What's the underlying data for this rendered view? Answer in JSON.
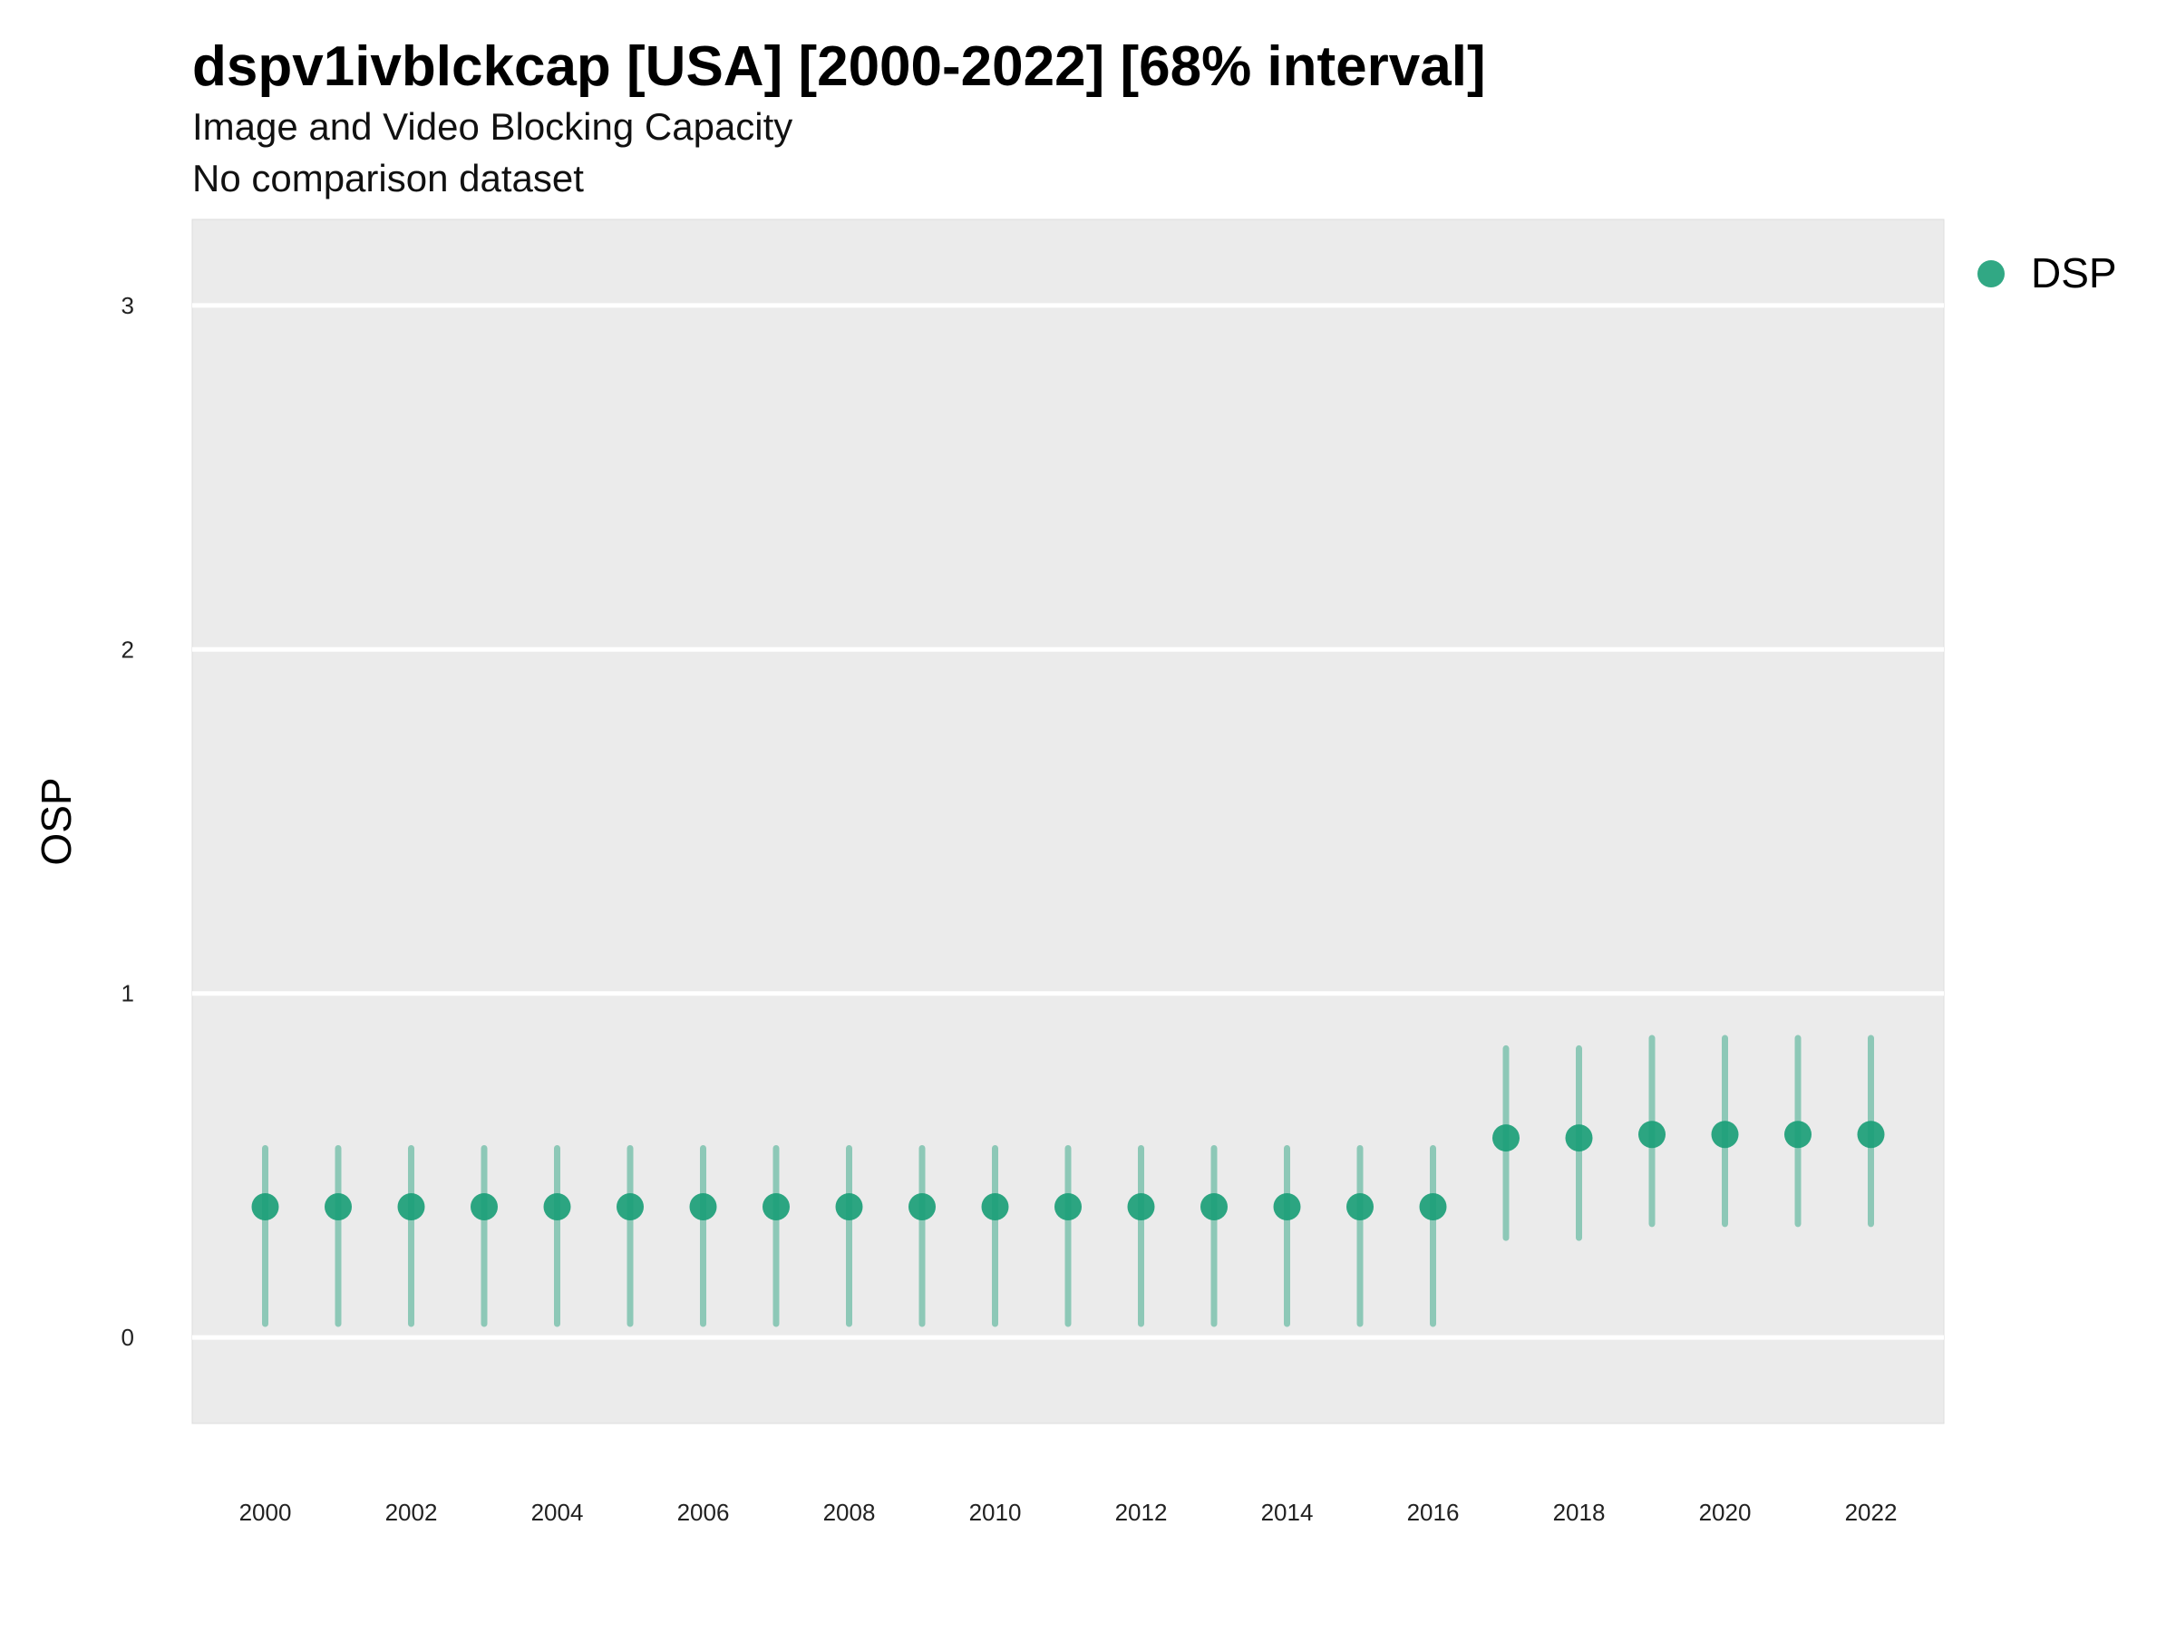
{
  "chart_data": {
    "type": "scatter",
    "title": "dspv1ivblckcap [USA] [2000-2022] [68% interval]",
    "subtitle": "Image and Video Blocking Capacity",
    "caption": "No comparison dataset",
    "xlabel": "",
    "ylabel": "OSP",
    "xlim": [
      1999,
      2023
    ],
    "ylim": [
      -0.25,
      3.25
    ],
    "yticks": [
      0,
      1,
      2,
      3
    ],
    "xticks": [
      2000,
      2002,
      2004,
      2006,
      2008,
      2010,
      2012,
      2014,
      2016,
      2018,
      2020,
      2022
    ],
    "grid": true,
    "legend_position": "right",
    "colors": {
      "series": "#1b9e77",
      "panel": "#ebebeb",
      "gridline": "#ffffff"
    },
    "series": [
      {
        "name": "DSP",
        "x": [
          2000,
          2001,
          2002,
          2003,
          2004,
          2005,
          2006,
          2007,
          2008,
          2009,
          2010,
          2011,
          2012,
          2013,
          2014,
          2015,
          2016,
          2017,
          2018,
          2019,
          2020,
          2021,
          2022
        ],
        "y": [
          0.38,
          0.38,
          0.38,
          0.38,
          0.38,
          0.38,
          0.38,
          0.38,
          0.38,
          0.38,
          0.38,
          0.38,
          0.38,
          0.38,
          0.38,
          0.38,
          0.38,
          0.58,
          0.58,
          0.59,
          0.59,
          0.59,
          0.59
        ],
        "lower": [
          0.04,
          0.04,
          0.04,
          0.04,
          0.04,
          0.04,
          0.04,
          0.04,
          0.04,
          0.04,
          0.04,
          0.04,
          0.04,
          0.04,
          0.04,
          0.04,
          0.04,
          0.29,
          0.29,
          0.33,
          0.33,
          0.33,
          0.33
        ],
        "upper": [
          0.55,
          0.55,
          0.55,
          0.55,
          0.55,
          0.55,
          0.55,
          0.55,
          0.55,
          0.55,
          0.55,
          0.55,
          0.55,
          0.55,
          0.55,
          0.55,
          0.55,
          0.84,
          0.84,
          0.87,
          0.87,
          0.87,
          0.87
        ]
      }
    ]
  }
}
